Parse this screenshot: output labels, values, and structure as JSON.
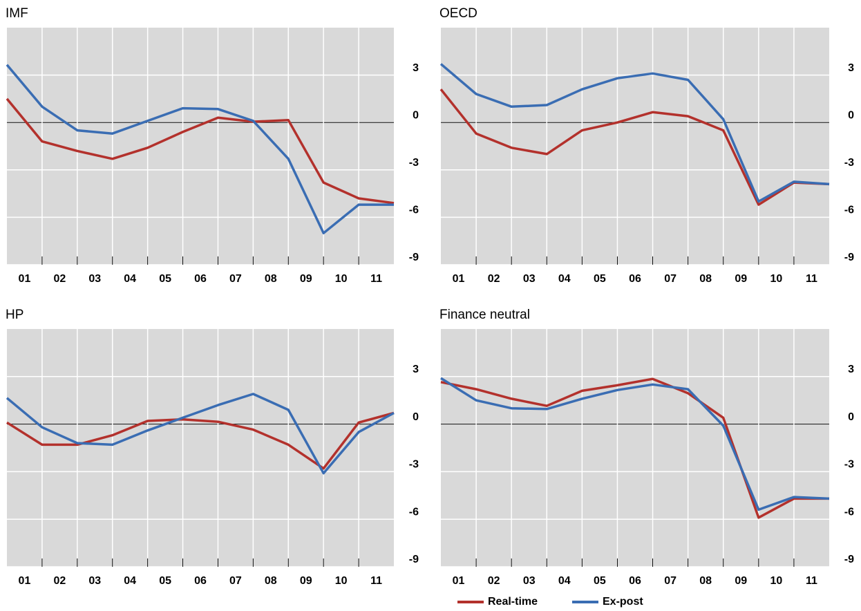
{
  "chart_data": [
    {
      "type": "line",
      "title": "IMF",
      "categories": [
        "01",
        "02",
        "03",
        "04",
        "05",
        "06",
        "07",
        "08",
        "09",
        "10",
        "11",
        null
      ],
      "series": [
        {
          "name": "Real-time",
          "color": "#b3312c",
          "values": [
            1.5,
            -1.2,
            -1.8,
            -2.3,
            -1.6,
            -0.6,
            0.3,
            0.05,
            0.15,
            -3.8,
            -4.8,
            -5.1
          ]
        },
        {
          "name": "Ex-post",
          "color": "#3a6db3",
          "values": [
            3.65,
            1.0,
            -0.5,
            -0.7,
            0.1,
            0.9,
            0.85,
            0.1,
            -2.3,
            -7.0,
            -5.2,
            -5.2
          ]
        }
      ],
      "ylim": [
        -9,
        6
      ],
      "yticks": [
        -9,
        -6,
        -3,
        0,
        3
      ],
      "grid": true
    },
    {
      "type": "line",
      "title": "OECD",
      "categories": [
        "01",
        "02",
        "03",
        "04",
        "05",
        "06",
        "07",
        "08",
        "09",
        "10",
        "11",
        null
      ],
      "series": [
        {
          "name": "Real-time",
          "color": "#b3312c",
          "values": [
            2.1,
            -0.7,
            -1.6,
            -2.0,
            -0.5,
            0,
            0.65,
            0.4,
            -0.5,
            -5.2,
            -3.8,
            -3.9
          ]
        },
        {
          "name": "Ex-post",
          "color": "#3a6db3",
          "values": [
            3.7,
            1.8,
            1.0,
            1.1,
            2.1,
            2.8,
            3.1,
            2.7,
            0.2,
            -5.0,
            -3.75,
            -3.9
          ]
        }
      ],
      "ylim": [
        -9,
        6
      ],
      "yticks": [
        -9,
        -6,
        -3,
        0,
        3
      ],
      "grid": true
    },
    {
      "type": "line",
      "title": "HP",
      "categories": [
        "01",
        "02",
        "03",
        "04",
        "05",
        "06",
        "07",
        "08",
        "09",
        "10",
        "11",
        null
      ],
      "series": [
        {
          "name": "Real-time",
          "color": "#b3312c",
          "values": [
            0.1,
            -1.3,
            -1.3,
            -0.7,
            0.2,
            0.3,
            0.15,
            -0.35,
            -1.3,
            -2.8,
            0.1,
            0.7
          ]
        },
        {
          "name": "Ex-post",
          "color": "#3a6db3",
          "values": [
            1.65,
            -0.2,
            -1.2,
            -1.3,
            -0.4,
            0.4,
            1.2,
            1.9,
            0.9,
            -3.1,
            -0.5,
            0.7
          ]
        }
      ],
      "ylim": [
        -9,
        6
      ],
      "yticks": [
        -9,
        -6,
        -3,
        0,
        3
      ],
      "grid": true
    },
    {
      "type": "line",
      "title": "Finance neutral",
      "categories": [
        "01",
        "02",
        "03",
        "04",
        "05",
        "06",
        "07",
        "08",
        "09",
        "10",
        "11",
        null
      ],
      "series": [
        {
          "name": "Real-time",
          "color": "#b3312c",
          "values": [
            2.65,
            2.2,
            1.6,
            1.15,
            2.1,
            2.45,
            2.85,
            1.95,
            0.4,
            -5.9,
            -4.7,
            -4.7
          ]
        },
        {
          "name": "Ex-post",
          "color": "#3a6db3",
          "values": [
            2.9,
            1.5,
            1.0,
            0.95,
            1.6,
            2.15,
            2.5,
            2.2,
            -0.1,
            -5.4,
            -4.6,
            -4.7
          ]
        }
      ],
      "ylim": [
        -9,
        6
      ],
      "yticks": [
        -9,
        -6,
        -3,
        0,
        3
      ],
      "grid": true,
      "legend": "below"
    }
  ]
}
